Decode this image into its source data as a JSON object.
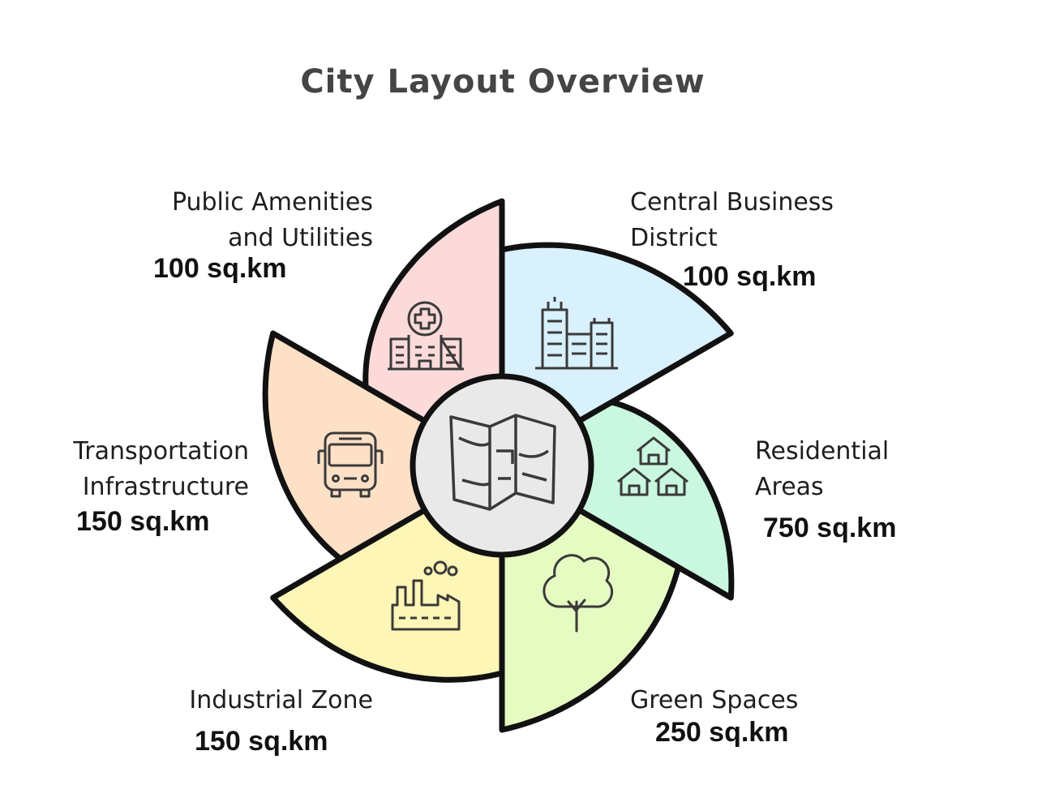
{
  "title": "City Layout Overview",
  "segments": [
    {
      "id": "cbd",
      "label_lines": [
        "Central Business",
        "District"
      ],
      "area": "100 sq.km",
      "icon": "office-buildings-icon",
      "color": "#d8f1fd"
    },
    {
      "id": "residential",
      "label_lines": [
        "Residential",
        "Areas"
      ],
      "area": "750 sq.km",
      "icon": "houses-icon",
      "color": "#c9f7df"
    },
    {
      "id": "green",
      "label_lines": [
        "Green Spaces"
      ],
      "area": "250 sq.km",
      "icon": "tree-icon",
      "color": "#e5fbc2"
    },
    {
      "id": "industrial",
      "label_lines": [
        "Industrial Zone"
      ],
      "area": "150 sq.km",
      "icon": "factory-icon",
      "color": "#fdf6b7"
    },
    {
      "id": "transport",
      "label_lines": [
        "Transportation",
        "Infrastructure"
      ],
      "area": "150 sq.km",
      "icon": "bus-icon",
      "color": "#fde0c6"
    },
    {
      "id": "public",
      "label_lines": [
        "Public Amenities",
        "and Utilities"
      ],
      "area": "100 sq.km",
      "icon": "hospital-icon",
      "color": "#fcdada"
    }
  ],
  "center": {
    "icon": "map-icon",
    "color": "#e9e9e9"
  }
}
